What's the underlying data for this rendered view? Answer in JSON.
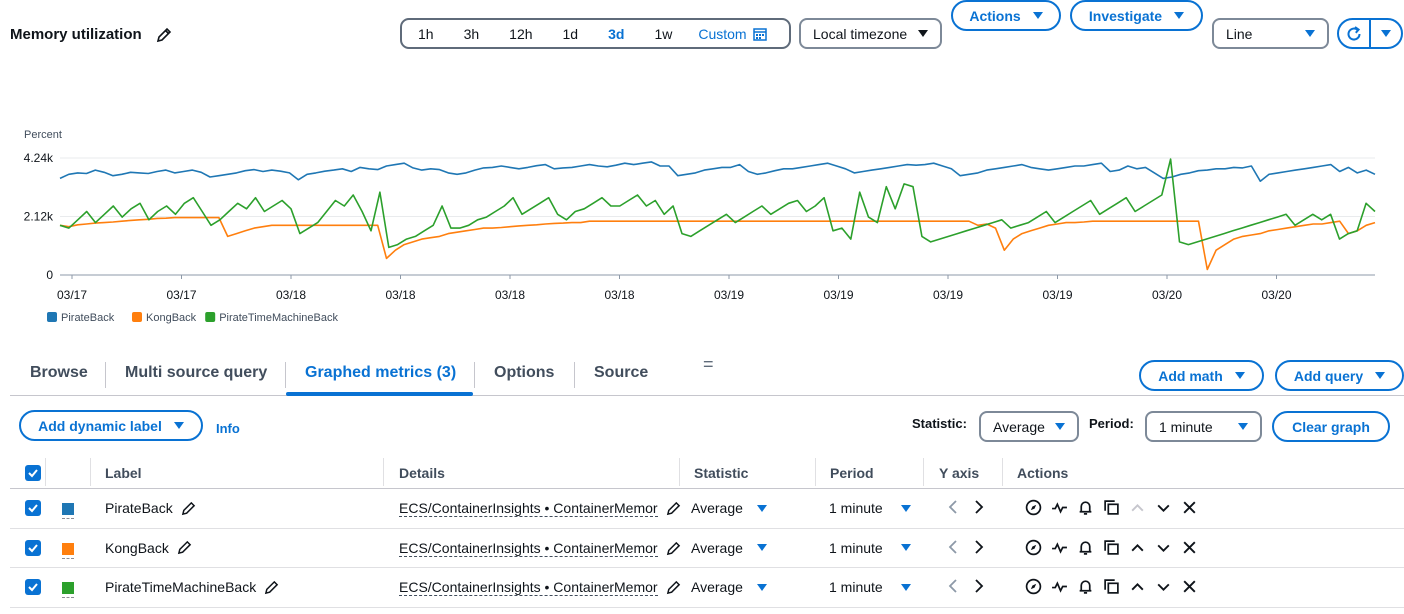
{
  "title": "Memory utilization",
  "time_ranges": [
    "1h",
    "3h",
    "12h",
    "1d",
    "3d",
    "1w"
  ],
  "selected_range": "3d",
  "custom_label": "Custom",
  "timezone": "Local timezone",
  "actions_label": "Actions",
  "investigate_label": "Investigate",
  "chart_type_value": "Line",
  "tabs": [
    "Browse",
    "Multi source query",
    "Graphed metrics (3)",
    "Options",
    "Source"
  ],
  "active_tab": "Graphed metrics (3)",
  "add_math": "Add math",
  "add_query": "Add query",
  "add_dynamic_label": "Add dynamic label",
  "info": "Info",
  "statistic_label": "Statistic:",
  "statistic_value": "Average",
  "period_label": "Period:",
  "period_value": "1 minute",
  "clear_graph": "Clear graph",
  "table": {
    "headers": [
      "Label",
      "Details",
      "Statistic",
      "Period",
      "Y axis",
      "Actions"
    ],
    "rows": [
      {
        "label": "PirateBack",
        "color": "#1f77b4",
        "details": "ECS/ContainerInsights • ContainerMemor",
        "statistic": "Average",
        "period": "1 minute"
      },
      {
        "label": "KongBack",
        "color": "#ff7f0e",
        "details": "ECS/ContainerInsights • ContainerMemor",
        "statistic": "Average",
        "period": "1 minute"
      },
      {
        "label": "PirateTimeMachineBack",
        "color": "#2ca02c",
        "details": "ECS/ContainerInsights • ContainerMemor",
        "statistic": "Average",
        "period": "1 minute"
      }
    ]
  },
  "chart_data": {
    "type": "line",
    "ylabel": "Percent",
    "ylim": [
      0,
      4240
    ],
    "y_ticks": [
      "0",
      "2.12k",
      "4.24k"
    ],
    "x_ticks": [
      "03/17",
      "03/17",
      "03/18",
      "03/18",
      "03/18",
      "03/18",
      "03/19",
      "03/19",
      "03/19",
      "03/19",
      "03/20",
      "03/20"
    ],
    "grid": true,
    "legend_position": "bottom-left",
    "series": [
      {
        "name": "PirateBack",
        "color": "#1f77b4",
        "values": [
          3500,
          3650,
          3700,
          3680,
          3800,
          3720,
          3600,
          3650,
          3720,
          3700,
          3680,
          3750,
          3800,
          3700,
          3750,
          3800,
          3720,
          3550,
          3600,
          3650,
          3700,
          3780,
          3820,
          3750,
          3800,
          3760,
          3700,
          3450,
          3650,
          3700,
          3760,
          3800,
          3850,
          3750,
          3900,
          3850,
          3820,
          3950,
          4000,
          4050,
          3880,
          3800,
          3850,
          3820,
          3700,
          3650,
          3700,
          3800,
          3880,
          3900,
          3950,
          3900,
          3850,
          3900,
          3960,
          4000,
          3850,
          3880,
          3900,
          3950,
          4000,
          3950,
          3920,
          3980,
          4050,
          4000,
          4050,
          4100,
          3950,
          3950,
          3600,
          3650,
          3700,
          3800,
          3850,
          3900,
          3900,
          4000,
          3750,
          3650,
          3700,
          3780,
          3850,
          3850,
          3900,
          3950,
          4000,
          4050,
          3950,
          3850,
          3700,
          3750,
          3800,
          3850,
          3900,
          3950,
          4000,
          3980,
          4000,
          4050,
          3950,
          3850,
          3600,
          3650,
          3700,
          3800,
          3850,
          3900,
          3950,
          4000,
          3900,
          3850,
          3800,
          3850,
          3900,
          3950,
          3950,
          4000,
          4050,
          3750,
          3800,
          3950,
          3850,
          3900,
          3700,
          3500,
          3550,
          3650,
          3700,
          3780,
          3800,
          3850,
          3850,
          3900,
          3880,
          3950,
          3400,
          3650,
          3700,
          3750,
          3800,
          3850,
          3900,
          3950,
          4000,
          3750,
          3900,
          3700,
          3800,
          3650
        ]
      },
      {
        "name": "KongBack",
        "color": "#ff7f0e",
        "values": [
          1800,
          1750,
          1820,
          1850,
          1880,
          1900,
          1920,
          1950,
          1980,
          2000,
          2020,
          2050,
          2060,
          2080,
          2080,
          2080,
          2080,
          2080,
          2080,
          1400,
          1500,
          1600,
          1700,
          1750,
          1800,
          1800,
          1800,
          1800,
          1800,
          1800,
          1800,
          1800,
          1800,
          1800,
          1800,
          1800,
          1800,
          600,
          900,
          1100,
          1200,
          1300,
          1350,
          1400,
          1500,
          1550,
          1600,
          1650,
          1700,
          1700,
          1720,
          1750,
          1780,
          1800,
          1820,
          1850,
          1870,
          1880,
          1900,
          1900,
          1950,
          1950,
          1950,
          1950,
          1950,
          1950,
          1950,
          1950,
          1950,
          1950,
          1950,
          1950,
          1950,
          1950,
          1950,
          1950,
          1950,
          1950,
          1950,
          1950,
          1950,
          1950,
          1950,
          1950,
          1950,
          1950,
          1950,
          1950,
          1950,
          1950,
          1950,
          1950,
          1950,
          1950,
          1950,
          1950,
          1950,
          1950,
          1950,
          1950,
          1950,
          1950,
          1950,
          1950,
          1800,
          1850,
          1700,
          900,
          1300,
          1500,
          1600,
          1700,
          1800,
          1850,
          1900,
          1900,
          1920,
          1950,
          1950,
          1950,
          1950,
          1950,
          1950,
          1950,
          1950,
          1950,
          1950,
          1950,
          1950,
          1950,
          200,
          900,
          1100,
          1300,
          1400,
          1450,
          1500,
          1600,
          1650,
          1700,
          1750,
          1800,
          1850,
          1850,
          1900,
          1950,
          1500,
          1600,
          1800,
          1900
        ]
      },
      {
        "name": "PirateTimeMachineBack",
        "color": "#2ca02c",
        "values": [
          1800,
          1700,
          2000,
          2300,
          1900,
          2200,
          2500,
          2100,
          2400,
          2600,
          2000,
          2300,
          2500,
          2200,
          2600,
          2800,
          2300,
          1800,
          2000,
          2300,
          2600,
          2400,
          2800,
          2300,
          2500,
          2700,
          2400,
          1500,
          1700,
          1900,
          2300,
          2700,
          2500,
          2900,
          2300,
          1600,
          3000,
          1000,
          1100,
          1300,
          1400,
          1600,
          1800,
          2500,
          1700,
          1700,
          1800,
          2000,
          2100,
          2300,
          2500,
          2800,
          2200,
          2400,
          2600,
          2800,
          2200,
          2000,
          2300,
          2400,
          2600,
          2800,
          2500,
          2500,
          2700,
          2900,
          2500,
          2700,
          2200,
          2500,
          1500,
          1400,
          1600,
          1800,
          2000,
          2200,
          1900,
          2100,
          2300,
          2500,
          2200,
          2400,
          2600,
          2700,
          2300,
          2500,
          2800,
          1600,
          1700,
          1300,
          3000,
          2100,
          1900,
          3200,
          2400,
          3300,
          3200,
          1400,
          1200,
          1300,
          1400,
          1500,
          1600,
          1700,
          1800,
          1900,
          2000,
          1700,
          1800,
          1900,
          2100,
          2300,
          1900,
          2100,
          2300,
          2500,
          2700,
          2200,
          2400,
          2600,
          2800,
          2300,
          2500,
          2700,
          2900,
          4200,
          1200,
          1100,
          1200,
          1300,
          1400,
          1500,
          1600,
          1700,
          1800,
          1900,
          2000,
          2100,
          2200,
          1800,
          2000,
          2200,
          2000,
          2200,
          1300,
          1500,
          1600,
          2600,
          2300
        ]
      }
    ]
  }
}
